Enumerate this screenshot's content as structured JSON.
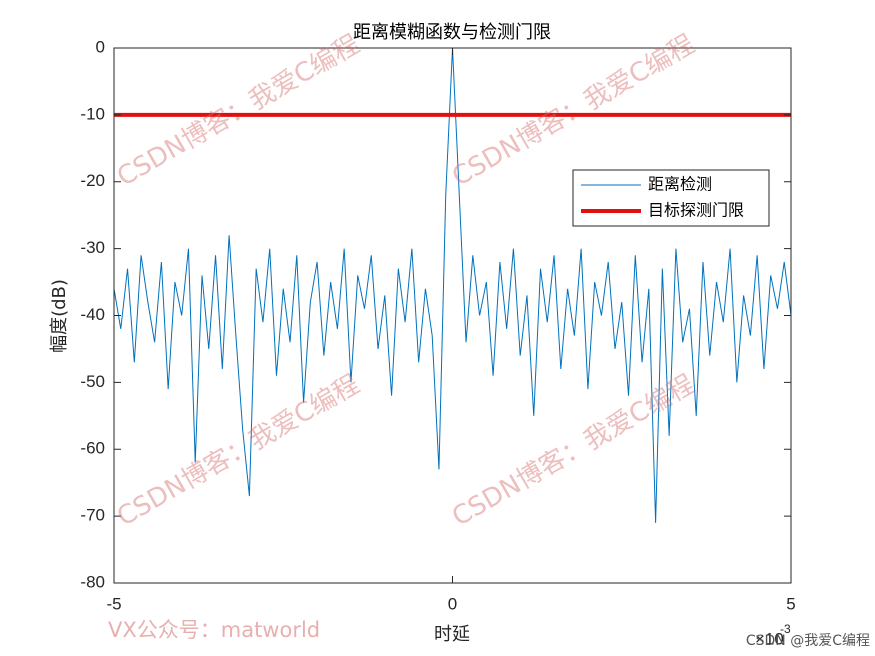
{
  "chart_data": {
    "type": "line",
    "title": "距离模糊函数与检测门限",
    "xlabel": "时延",
    "ylabel": "幅度(dB)",
    "x_exponent": {
      "base": "×10",
      "power": "-3"
    },
    "xlim": [
      -5,
      5
    ],
    "xticks": [
      -5,
      0,
      5
    ],
    "ylim": [
      -80,
      0
    ],
    "yticks": [
      0,
      -10,
      -20,
      -30,
      -40,
      -50,
      -60,
      -70,
      -80
    ],
    "grid": false,
    "legend": "upper right",
    "series": [
      {
        "name": "距离检测",
        "color": "#0072bd",
        "width": 1,
        "x": [
          -5.0,
          -4.9,
          -4.8,
          -4.7,
          -4.6,
          -4.5,
          -4.4,
          -4.3,
          -4.2,
          -4.1,
          -4.0,
          -3.9,
          -3.8,
          -3.7,
          -3.6,
          -3.5,
          -3.4,
          -3.3,
          -3.2,
          -3.1,
          -3.0,
          -2.9,
          -2.8,
          -2.7,
          -2.6,
          -2.5,
          -2.4,
          -2.3,
          -2.2,
          -2.1,
          -2.0,
          -1.9,
          -1.8,
          -1.7,
          -1.6,
          -1.5,
          -1.4,
          -1.3,
          -1.2,
          -1.1,
          -1.0,
          -0.9,
          -0.8,
          -0.7,
          -0.6,
          -0.5,
          -0.4,
          -0.3,
          -0.2,
          -0.1,
          0.0,
          0.1,
          0.2,
          0.3,
          0.4,
          0.5,
          0.6,
          0.7,
          0.8,
          0.9,
          1.0,
          1.1,
          1.2,
          1.3,
          1.4,
          1.5,
          1.6,
          1.7,
          1.8,
          1.9,
          2.0,
          2.1,
          2.2,
          2.3,
          2.4,
          2.5,
          2.6,
          2.7,
          2.8,
          2.9,
          3.0,
          3.1,
          3.2,
          3.3,
          3.4,
          3.5,
          3.6,
          3.7,
          3.8,
          3.9,
          4.0,
          4.1,
          4.2,
          4.3,
          4.4,
          4.5,
          4.6,
          4.7,
          4.8,
          4.9,
          5.0
        ],
        "values": [
          -36,
          -42,
          -33,
          -47,
          -31,
          -38,
          -44,
          -32,
          -51,
          -35,
          -40,
          -30,
          -62,
          -34,
          -45,
          -31,
          -48,
          -28,
          -43,
          -57,
          -67,
          -33,
          -41,
          -30,
          -49,
          -36,
          -44,
          -31,
          -53,
          -38,
          -32,
          -46,
          -35,
          -42,
          -30,
          -50,
          -34,
          -39,
          -31,
          -45,
          -37,
          -52,
          -33,
          -41,
          -30,
          -47,
          -36,
          -43,
          -63,
          -22,
          0,
          -22,
          -44,
          -31,
          -40,
          -35,
          -49,
          -32,
          -42,
          -30,
          -46,
          -37,
          -55,
          -33,
          -41,
          -31,
          -48,
          -36,
          -43,
          -30,
          -51,
          -35,
          -40,
          -32,
          -45,
          -38,
          -52,
          -31,
          -47,
          -36,
          -71,
          -33,
          -58,
          -30,
          -44,
          -39,
          -55,
          -32,
          -46,
          -35,
          -41,
          -30,
          -50,
          -37,
          -43,
          -31,
          -48,
          -34,
          -39,
          -32,
          -40
        ]
      },
      {
        "name": "目标探测门限",
        "color": "#e01010",
        "width": 4,
        "x": [
          -5,
          5
        ],
        "values": [
          -10,
          -10
        ]
      }
    ],
    "watermarks": [
      "CSDN博客：我爱C编程",
      "CSDN博客：我爱C编程",
      "CSDN博客：我爱C编程",
      "CSDN博客：我爱C编程"
    ],
    "footer_left": "VX公众号：matworld",
    "footer_right": "CSDN @我爱C编程"
  }
}
